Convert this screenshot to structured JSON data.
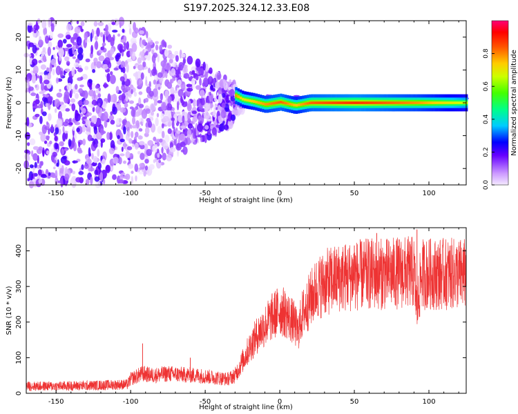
{
  "title": "S197.2025.324.12.33.E08",
  "chart_data": [
    {
      "type": "heatmap",
      "xlabel": "Height of straight line (km)",
      "ylabel": "Frequency (Hz)",
      "xlim": [
        -170,
        125
      ],
      "ylim": [
        -25,
        25
      ],
      "xticks": [
        -150,
        -100,
        -50,
        0,
        50,
        100
      ],
      "yticks": [
        -20,
        -10,
        0,
        10,
        20
      ],
      "colorbar": {
        "label": "Normalized spectral amplitude",
        "range": [
          0,
          1
        ],
        "ticks": [
          0.0,
          0.2,
          0.4,
          0.6,
          0.8
        ]
      },
      "ridge": [
        {
          "x": -30,
          "y": 2.2,
          "amp": 0.85
        },
        {
          "x": -25,
          "y": 1.0,
          "amp": 0.75
        },
        {
          "x": -18,
          "y": 0.4,
          "amp": 0.8
        },
        {
          "x": -10,
          "y": -0.5,
          "amp": 0.85
        },
        {
          "x": 0,
          "y": 0.2,
          "amp": 0.9
        },
        {
          "x": 10,
          "y": -0.8,
          "amp": 0.8
        },
        {
          "x": 20,
          "y": 0.0,
          "amp": 0.9
        },
        {
          "x": 50,
          "y": 0.0,
          "amp": 0.95
        },
        {
          "x": 92,
          "y": 0.0,
          "amp": 0.85
        },
        {
          "x": 125,
          "y": 0.0,
          "amp": 0.7
        }
      ]
    },
    {
      "type": "line",
      "xlabel": "Height of straight line (km)",
      "ylabel": "SNR (10 * v/v)",
      "xlim": [
        -170,
        125
      ],
      "ylim": [
        0,
        465
      ],
      "xticks": [
        -150,
        -100,
        -50,
        0,
        50,
        100
      ],
      "yticks": [
        0,
        100,
        200,
        300,
        400
      ],
      "series": [
        {
          "name": "SNR",
          "color": "#ee3333",
          "x": [
            -170,
            -150,
            -125,
            -102,
            -100,
            -92,
            -85,
            -75,
            -65,
            -55,
            -45,
            -35,
            -30,
            -25,
            -20,
            -15,
            -10,
            -5,
            0,
            5,
            10,
            12,
            15,
            20,
            25,
            30,
            40,
            50,
            60,
            70,
            80,
            90,
            92,
            95,
            110,
            125
          ],
          "y": [
            20,
            20,
            22,
            25,
            40,
            55,
            50,
            55,
            52,
            50,
            45,
            40,
            50,
            90,
            130,
            165,
            190,
            215,
            235,
            220,
            195,
            170,
            220,
            260,
            295,
            310,
            325,
            330,
            335,
            335,
            338,
            340,
            235,
            335,
            335,
            335
          ],
          "peaks": [
            {
              "x": -92,
              "y": 140
            },
            {
              "x": -60,
              "y": 100
            },
            {
              "x": 50,
              "y": 415
            },
            {
              "x": 65,
              "y": 450
            },
            {
              "x": 92,
              "y": 460
            }
          ]
        }
      ]
    }
  ]
}
